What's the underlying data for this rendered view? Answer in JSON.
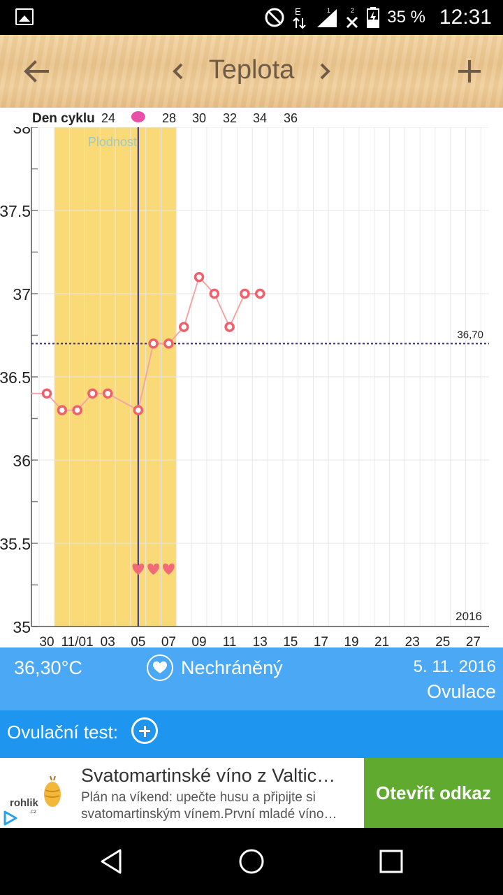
{
  "status_bar": {
    "battery_percent": "35 %",
    "time": "12:31",
    "network_label": "E",
    "sim1": "1",
    "sim2": "2"
  },
  "header": {
    "title": "Teplota"
  },
  "chart_data": {
    "type": "line",
    "title": "",
    "top_axis_label": "Den cyklu",
    "top_axis_ticks": [
      "24",
      "28",
      "30",
      "32",
      "34",
      "36"
    ],
    "x_tick_labels": [
      "30",
      "11/01",
      "03",
      "05",
      "07",
      "09",
      "11",
      "13",
      "15",
      "17",
      "19",
      "21",
      "23",
      "25",
      "27"
    ],
    "y_tick_labels": [
      "35",
      "35.5",
      "36",
      "36.5",
      "37",
      "37.5",
      "38"
    ],
    "ylim": [
      35,
      38
    ],
    "x_days": [
      "10-30",
      "10-31",
      "11-01",
      "11-02",
      "11-03",
      "11-04",
      "11-05",
      "11-06",
      "11-07",
      "11-08",
      "11-09",
      "11-10",
      "11-11",
      "11-12",
      "11-13"
    ],
    "series": [
      {
        "x": [
          "10-30",
          "10-31",
          "11-01",
          "11-02",
          "11-03",
          "11-05",
          "11-06",
          "11-07",
          "11-08",
          "11-09",
          "11-10",
          "11-11",
          "11-12",
          "11-13"
        ],
        "values": [
          36.4,
          36.3,
          36.3,
          36.4,
          36.4,
          36.3,
          36.7,
          36.7,
          36.8,
          37.1,
          37.0,
          36.8,
          37.0,
          37.0
        ]
      }
    ],
    "coverline_value": 36.7,
    "coverline_label": "36,70",
    "fertile_window": {
      "start": "10-31",
      "end": "11-07",
      "label": "Plodnost"
    },
    "ovulation_day": "11-05",
    "intercourse_days": [
      "11-05",
      "11-06",
      "11-07"
    ],
    "year_label": "2016",
    "grid": true,
    "colors": {
      "line": "#f5a5a8",
      "marker": "#f0606a",
      "fertile": "#f9da77",
      "ovulation_line": "#2b2aa8",
      "coverline": "#2b2aa8",
      "heart": "#f06a78"
    }
  },
  "info": {
    "temperature": "36,30°C",
    "intercourse": "Nechráněný",
    "date": "5. 11. 2016",
    "phase": "Ovulace"
  },
  "ovulation_test": {
    "label": "Ovulační test:"
  },
  "ad": {
    "logo_text": "rohlik",
    "logo_sub": ".cz",
    "title": "Svatomartinské víno z Valtic…",
    "desc_line1": "Plán na víkend: upečte husu a připijte si",
    "desc_line2": "svatomartinským vínem.První mladé víno…",
    "cta": "Otevřít odkaz"
  }
}
